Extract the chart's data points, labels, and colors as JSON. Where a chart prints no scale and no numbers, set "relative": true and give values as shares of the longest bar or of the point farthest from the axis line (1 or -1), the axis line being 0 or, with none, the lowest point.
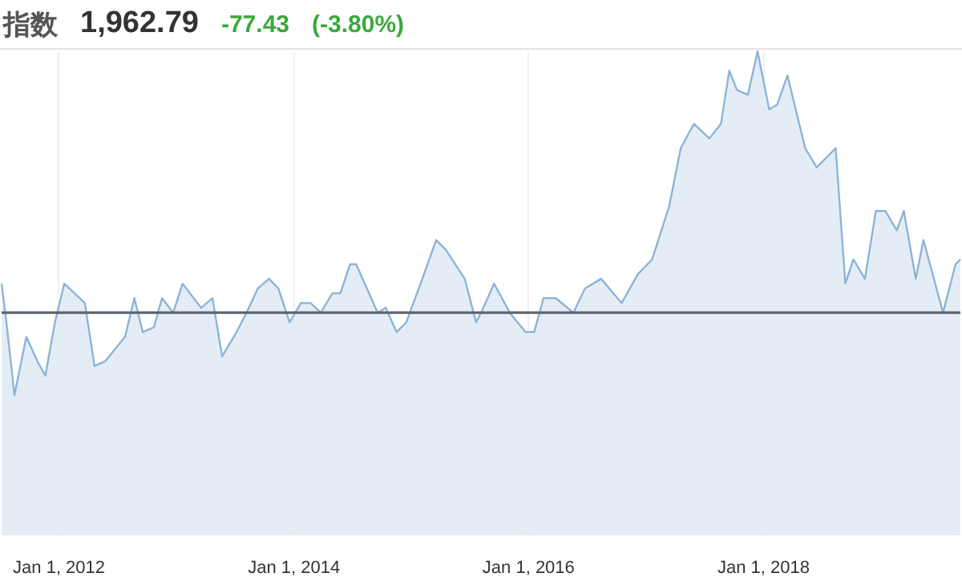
{
  "chart_data": {
    "type": "area",
    "title": "指数",
    "annotations": [
      "1,962.79",
      "-77.43",
      "(-3.80%)"
    ],
    "relative": true,
    "grid": "x",
    "x": [
      "2011-07-09",
      "2011-07-24",
      "2011-08-18",
      "2011-09-24",
      "2011-10-28",
      "2011-11-22",
      "2011-12-22",
      "2012-01-20",
      "2012-03-24",
      "2012-04-23",
      "2012-05-27",
      "2012-07-27",
      "2012-08-25",
      "2012-09-20",
      "2012-10-25",
      "2012-11-19",
      "2012-12-24",
      "2013-01-22",
      "2013-03-21",
      "2013-04-25",
      "2013-05-25",
      "2013-07-09",
      "2013-08-09",
      "2013-09-13",
      "2013-10-18",
      "2013-11-16",
      "2013-12-21",
      "2014-01-25",
      "2014-02-24",
      "2014-03-28",
      "2014-05-03",
      "2014-05-28",
      "2014-06-27",
      "2014-07-16",
      "2014-09-21",
      "2014-10-16",
      "2014-11-19",
      "2014-12-19",
      "2015-02-07",
      "2015-03-22",
      "2015-04-21",
      "2015-06-19",
      "2015-07-24",
      "2015-08-09",
      "2015-09-18",
      "2015-11-06",
      "2015-12-25",
      "2016-01-21",
      "2016-02-19",
      "2016-03-28",
      "2016-05-22",
      "2016-06-27",
      "2016-08-16",
      "2016-10-19",
      "2016-12-09",
      "2017-01-22",
      "2017-03-16",
      "2017-04-21",
      "2017-06-01",
      "2017-07-19",
      "2017-08-24",
      "2017-09-19",
      "2017-10-13",
      "2017-11-16",
      "2017-12-16",
      "2018-01-21",
      "2018-02-15",
      "2018-03-19",
      "2018-05-13",
      "2018-06-18",
      "2018-08-16",
      "2018-09-15",
      "2018-10-10",
      "2018-11-15",
      "2018-12-19",
      "2019-01-18",
      "2019-02-22",
      "2019-03-16",
      "2019-04-22",
      "2019-05-16",
      "2019-07-16",
      "2019-08-24",
      "2019-09-08"
    ],
    "series": [
      {
        "color": "#8db4d8",
        "values": [
          0.52,
          0.44,
          0.29,
          0.41,
          0.36,
          0.33,
          0.44,
          0.52,
          0.48,
          0.35,
          0.36,
          0.41,
          0.49,
          0.42,
          0.43,
          0.49,
          0.46,
          0.52,
          0.47,
          0.49,
          0.37,
          0.42,
          0.46,
          0.51,
          0.53,
          0.51,
          0.44,
          0.48,
          0.48,
          0.46,
          0.5,
          0.5,
          0.56,
          0.56,
          0.46,
          0.47,
          0.42,
          0.44,
          0.53,
          0.61,
          0.59,
          0.53,
          0.44,
          0.46,
          0.52,
          0.46,
          0.42,
          0.42,
          0.49,
          0.49,
          0.46,
          0.51,
          0.53,
          0.48,
          0.54,
          0.57,
          0.68,
          0.8,
          0.85,
          0.82,
          0.85,
          0.96,
          0.92,
          0.91,
          1,
          0.88,
          0.89,
          0.95,
          0.8,
          0.76,
          0.8,
          0.52,
          0.57,
          0.53,
          0.67,
          0.67,
          0.63,
          0.67,
          0.53,
          0.61,
          0.46,
          0.56,
          0.57
        ]
      }
    ],
    "ref_lines": [
      {
        "axis": "y",
        "value": 0.46,
        "color": "#5c656c"
      }
    ],
    "xlim": [
      "2011-07-09",
      "2019-09-08"
    ],
    "xticks": [
      {
        "value": "2012-01-01",
        "label": "Jan 1, 2012"
      },
      {
        "value": "2014-01-01",
        "label": "Jan 1, 2014"
      },
      {
        "value": "2016-01-01",
        "label": "Jan 1, 2016"
      },
      {
        "value": "2018-01-01",
        "label": "Jan 1, 2018"
      }
    ]
  }
}
